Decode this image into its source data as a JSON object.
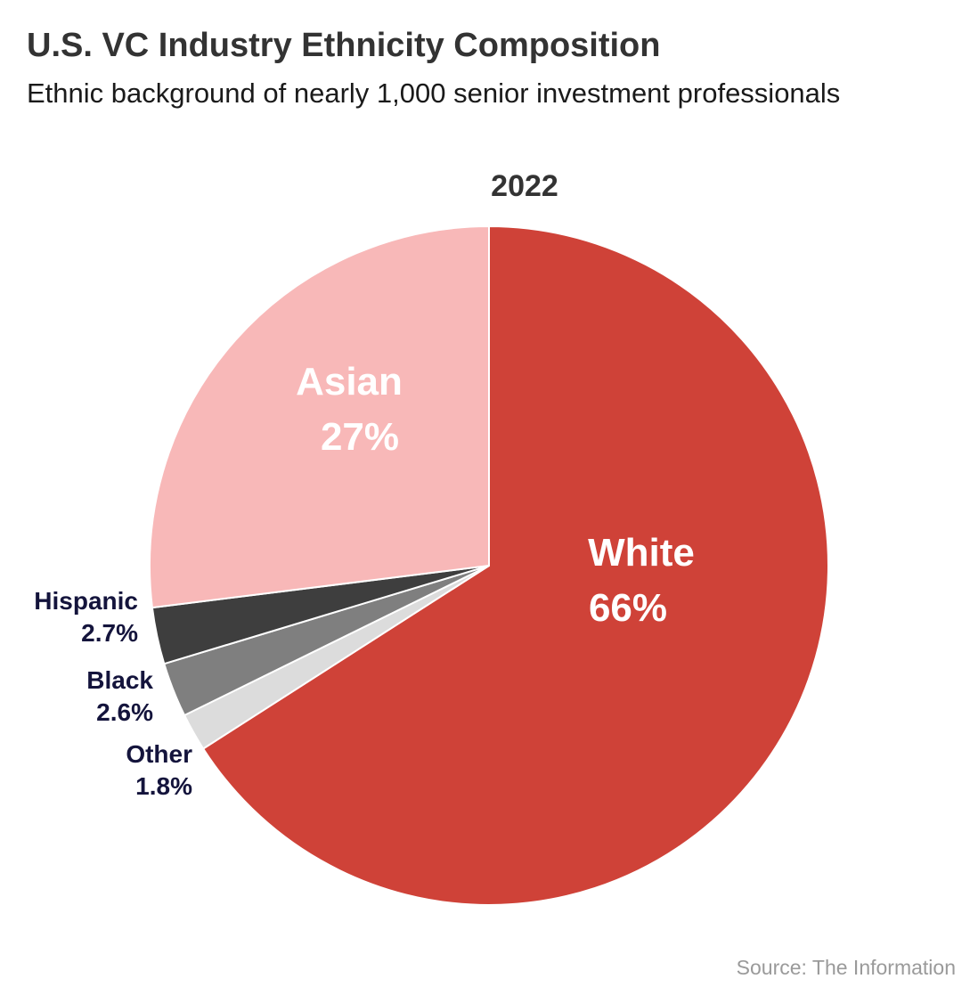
{
  "title": "U.S. VC Industry Ethnicity Composition",
  "subtitle": "Ethnic background of nearly 1,000 senior investment professionals",
  "source": "Source: The Information",
  "chart_data": {
    "type": "pie",
    "title": "2022",
    "slices": [
      {
        "label": "White",
        "value": 66,
        "value_label": "66%",
        "color": "#cf4238",
        "label_color": "#ffffff",
        "label_placement": "inside"
      },
      {
        "label": "Other",
        "value": 1.8,
        "value_label": "1.8%",
        "color": "#dcdcdc",
        "label_color": "#14143c",
        "label_placement": "outside"
      },
      {
        "label": "Black",
        "value": 2.6,
        "value_label": "2.6%",
        "color": "#7f7f7f",
        "label_color": "#14143c",
        "label_placement": "outside"
      },
      {
        "label": "Hispanic",
        "value": 2.7,
        "value_label": "2.7%",
        "color": "#3e3e3e",
        "label_color": "#14143c",
        "label_placement": "outside"
      },
      {
        "label": "Asian",
        "value": 27,
        "value_label": "27%",
        "color": "#f8b8b8",
        "label_color": "#ffffff",
        "label_placement": "inside"
      }
    ],
    "start_angle_deg": 0,
    "direction": "clockwise"
  }
}
